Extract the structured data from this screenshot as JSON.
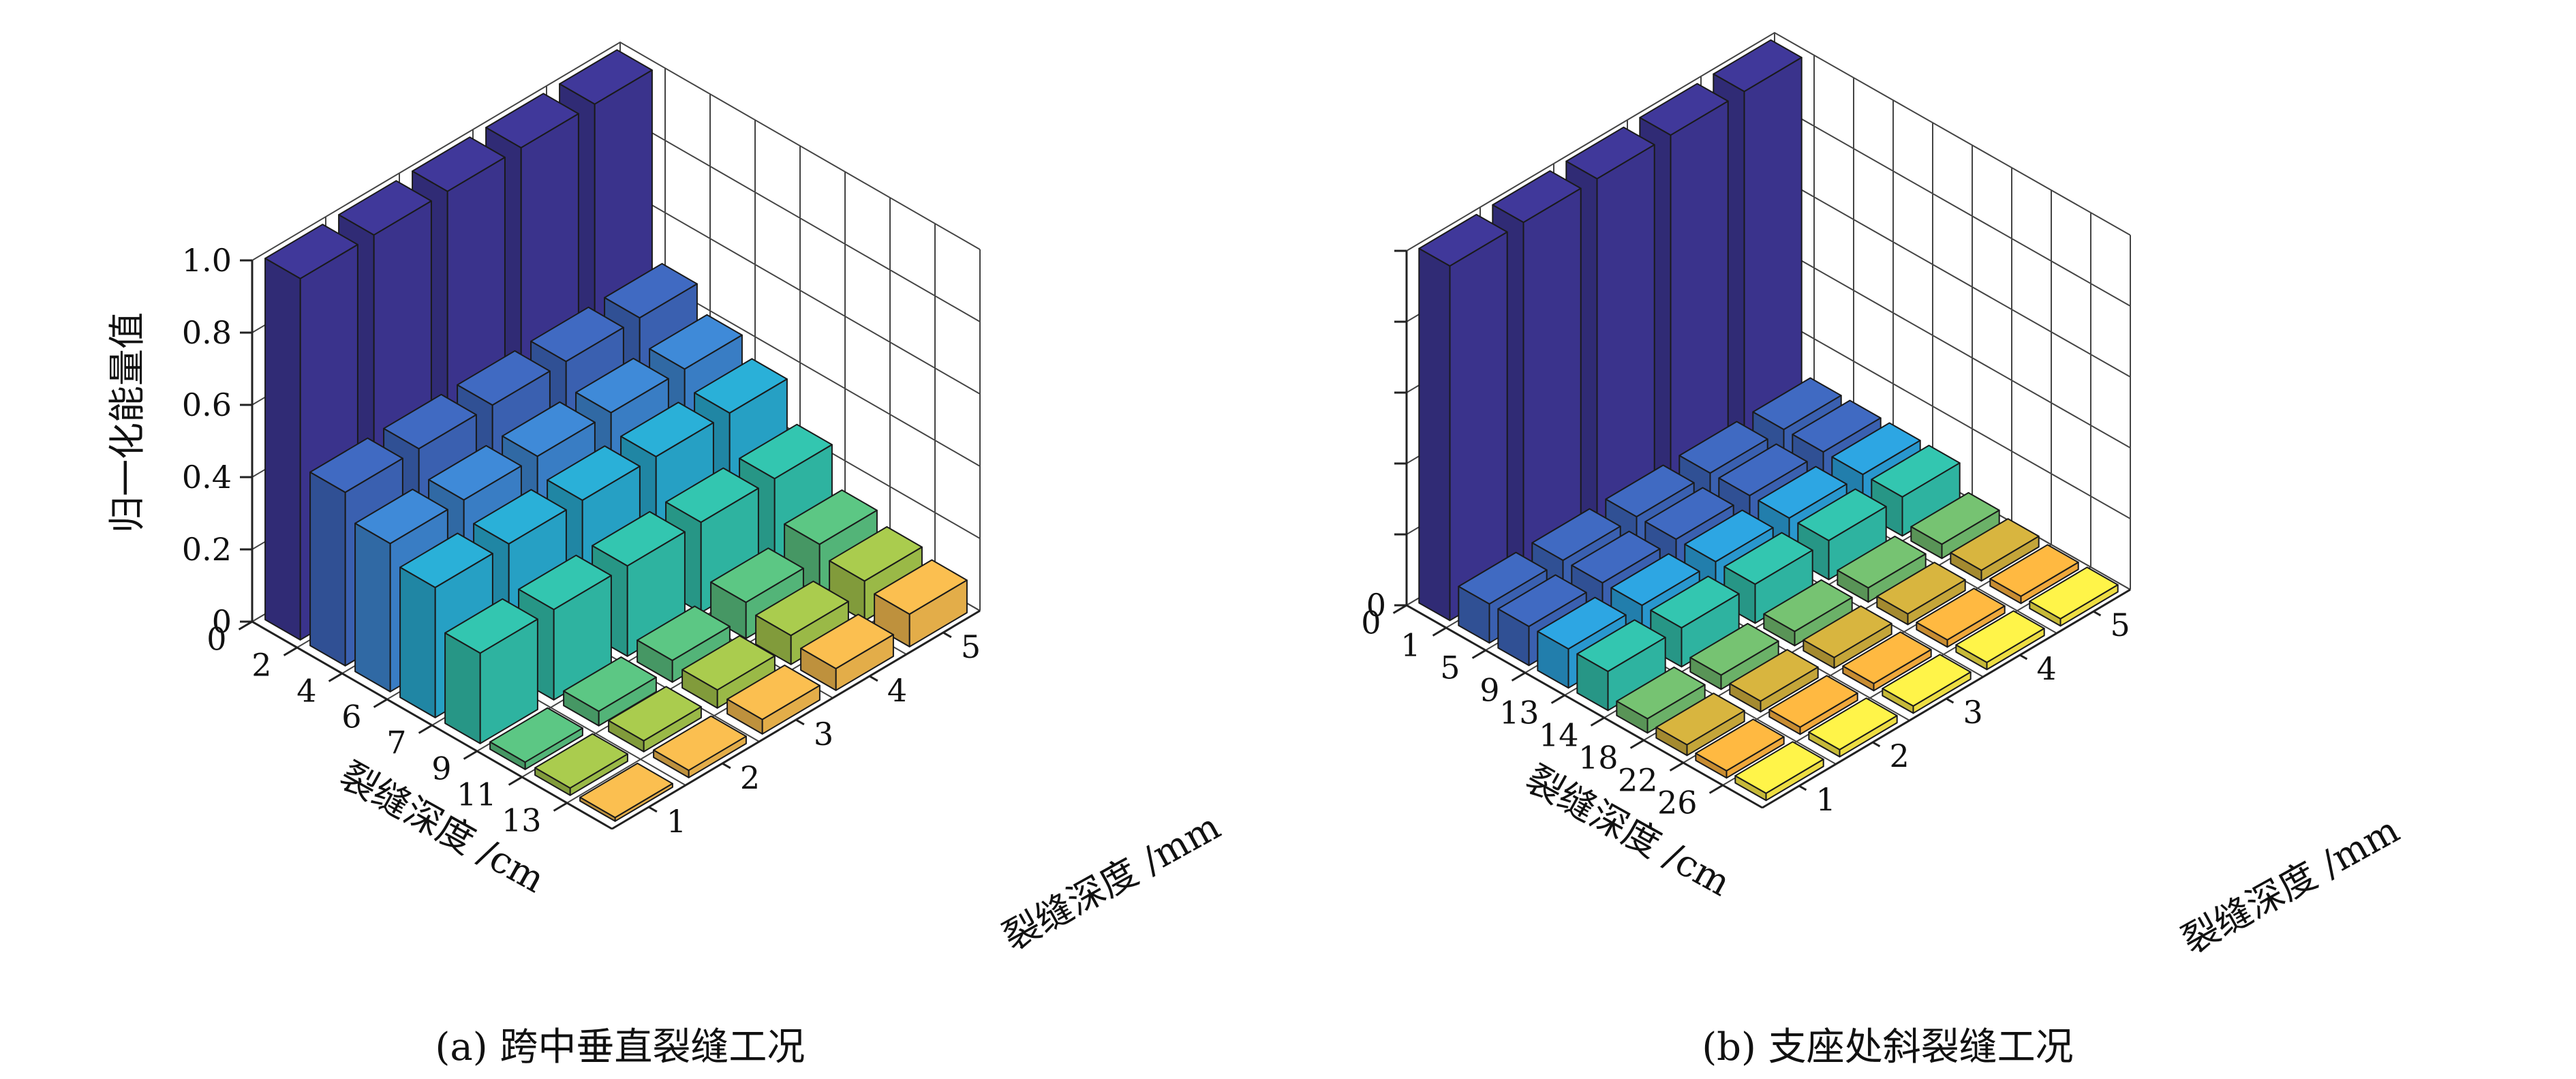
{
  "chart_data": [
    {
      "type": "bar3d",
      "caption": "(a) 跨中垂直裂缝工况",
      "zlabel": "归一化能量值",
      "xlabel": "裂缝深度 /cm",
      "ylabel": "裂缝深度 /mm",
      "zticks": [
        "0",
        "0.2",
        "0.4",
        "0.6",
        "0.8",
        "1.0"
      ],
      "zlim": [
        0,
        1
      ],
      "x_categories": [
        "0",
        "2",
        "4",
        "6",
        "7",
        "9",
        "11",
        "13"
      ],
      "y_categories": [
        "1",
        "2",
        "3",
        "4",
        "5"
      ],
      "grid": true,
      "values": [
        [
          1.0,
          0.48,
          0.41,
          0.36,
          0.25,
          0.02,
          0.02,
          0.01
        ],
        [
          1.0,
          0.48,
          0.41,
          0.36,
          0.25,
          0.04,
          0.03,
          0.02
        ],
        [
          1.0,
          0.48,
          0.41,
          0.36,
          0.25,
          0.06,
          0.05,
          0.04
        ],
        [
          1.0,
          0.48,
          0.41,
          0.36,
          0.25,
          0.1,
          0.08,
          0.06
        ],
        [
          1.0,
          0.48,
          0.41,
          0.36,
          0.25,
          0.14,
          0.11,
          0.09
        ]
      ],
      "colors": [
        "#3b348f",
        "#3b62b4",
        "#3a80c8",
        "#27a3c8",
        "#2fb7a3",
        "#55b87a",
        "#9dbd48",
        "#e8b14a",
        "#f4a640",
        "#f2e244"
      ]
    },
    {
      "type": "bar3d",
      "caption": "(b) 支座处斜裂缝工况",
      "xlabel": "裂缝深度 /cm",
      "ylabel": "裂缝深度 /mm",
      "zticks": [
        "0"
      ],
      "zlim": [
        0,
        1
      ],
      "x_categories": [
        "0",
        "1",
        "5",
        "9",
        "13",
        "14",
        "18",
        "22",
        "26"
      ],
      "y_categories": [
        "1",
        "2",
        "3",
        "4",
        "5"
      ],
      "grid": true,
      "values": [
        [
          1.0,
          0.11,
          0.11,
          0.11,
          0.11,
          0.04,
          0.03,
          0.02,
          0.02
        ],
        [
          1.0,
          0.11,
          0.11,
          0.11,
          0.11,
          0.04,
          0.03,
          0.02,
          0.02
        ],
        [
          1.0,
          0.11,
          0.11,
          0.11,
          0.11,
          0.04,
          0.03,
          0.02,
          0.02
        ],
        [
          1.0,
          0.11,
          0.11,
          0.11,
          0.11,
          0.04,
          0.03,
          0.02,
          0.02
        ],
        [
          1.0,
          0.11,
          0.11,
          0.11,
          0.11,
          0.04,
          0.03,
          0.02,
          0.02
        ]
      ],
      "colors": [
        "#3b348f",
        "#3b62b4",
        "#3b62b4",
        "#2a9ad2",
        "#2fb7a3",
        "#6db56a",
        "#c8a83a",
        "#f4ab3c",
        "#f2e244"
      ]
    }
  ]
}
